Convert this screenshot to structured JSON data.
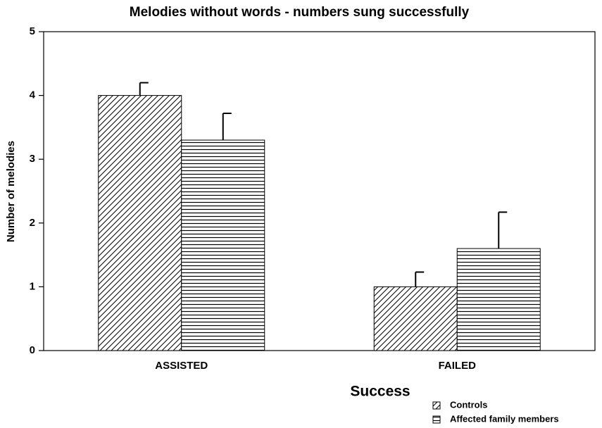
{
  "chart_data": {
    "type": "bar",
    "title": "Melodies without words - numbers sung successfully",
    "x_label": "Success",
    "y_label": "Number of melodies",
    "categories": [
      "ASSISTED",
      "FAILED"
    ],
    "series": [
      {
        "name": "Controls",
        "color": "#000000",
        "pattern": "diagonal",
        "values": [
          4.0,
          1.0
        ],
        "errors": [
          0.2,
          0.23
        ]
      },
      {
        "name": "Affected family members",
        "color": "#000000",
        "pattern": "horizontal",
        "values": [
          3.3,
          1.6
        ],
        "errors": [
          0.42,
          0.57
        ]
      }
    ],
    "ylim": [
      0,
      5
    ],
    "yticks": [
      0,
      1,
      2,
      3,
      4,
      5
    ],
    "grid": false,
    "legend": "lower right"
  }
}
